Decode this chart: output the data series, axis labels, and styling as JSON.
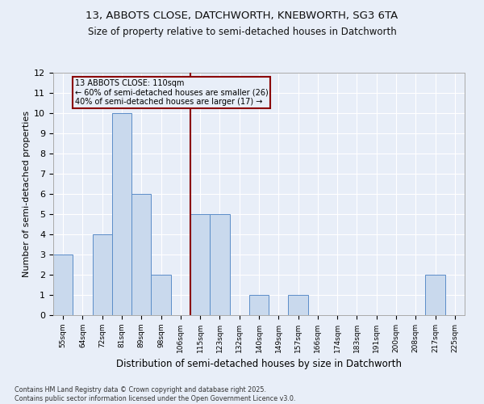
{
  "title1": "13, ABBOTS CLOSE, DATCHWORTH, KNEBWORTH, SG3 6TA",
  "title2": "Size of property relative to semi-detached houses in Datchworth",
  "xlabel": "Distribution of semi-detached houses by size in Datchworth",
  "ylabel": "Number of semi-detached properties",
  "footnote1": "Contains HM Land Registry data © Crown copyright and database right 2025.",
  "footnote2": "Contains public sector information licensed under the Open Government Licence v3.0.",
  "bin_labels": [
    "55sqm",
    "64sqm",
    "72sqm",
    "81sqm",
    "89sqm",
    "98sqm",
    "106sqm",
    "115sqm",
    "123sqm",
    "132sqm",
    "140sqm",
    "149sqm",
    "157sqm",
    "166sqm",
    "174sqm",
    "183sqm",
    "191sqm",
    "200sqm",
    "208sqm",
    "217sqm",
    "225sqm"
  ],
  "values": [
    3,
    0,
    4,
    10,
    6,
    2,
    0,
    5,
    5,
    0,
    1,
    0,
    1,
    0,
    0,
    0,
    0,
    0,
    0,
    2,
    0
  ],
  "bar_color": "#c9d9ed",
  "bar_edge_color": "#5b8dc8",
  "property_line_x": 6.5,
  "property_line_color": "#8b0000",
  "annotation_text": "13 ABBOTS CLOSE: 110sqm\n← 60% of semi-detached houses are smaller (26)\n40% of semi-detached houses are larger (17) →",
  "annotation_box_color": "#8b0000",
  "ylim": [
    0,
    12
  ],
  "yticks": [
    0,
    1,
    2,
    3,
    4,
    5,
    6,
    7,
    8,
    9,
    10,
    11,
    12
  ],
  "background_color": "#e8eef8",
  "grid_color": "#ffffff"
}
